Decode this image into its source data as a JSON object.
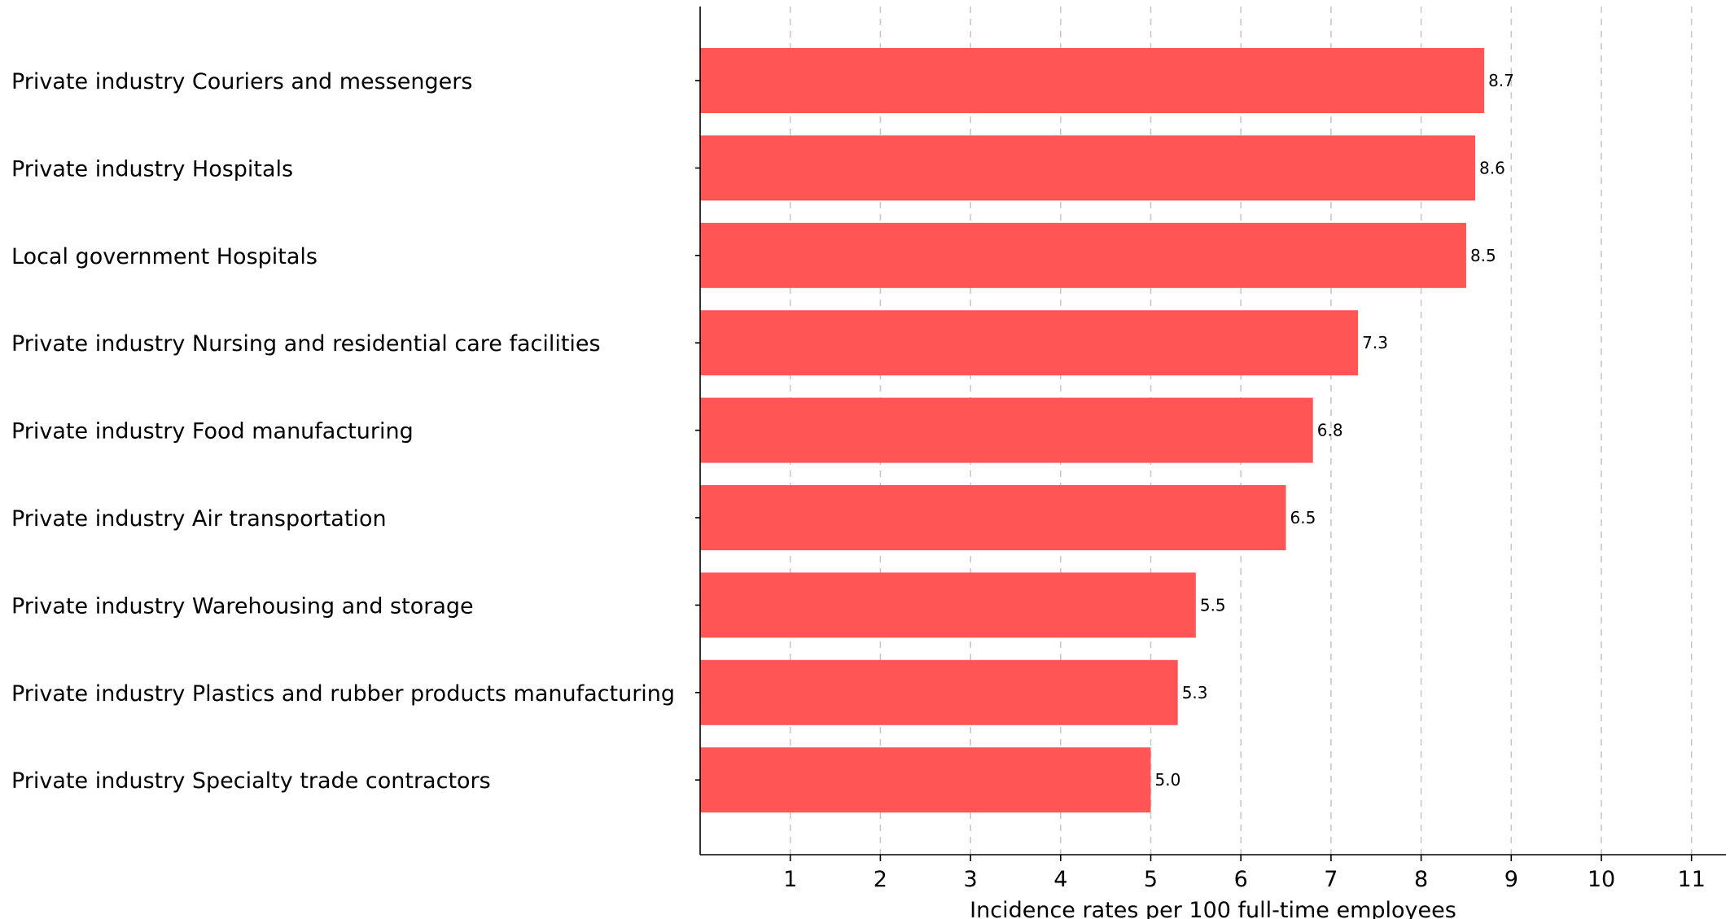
{
  "chart_data": {
    "type": "bar",
    "orientation": "horizontal",
    "categories": [
      "Private industry Couriers and messengers",
      "Private industry Hospitals",
      "Local government Hospitals",
      "Private industry Nursing and residential care facilities",
      "Private industry Food manufacturing",
      "Private industry Air transportation",
      "Private industry Warehousing and storage",
      "Private industry Plastics and rubber products manufacturing",
      "Private industry Specialty trade contractors"
    ],
    "values": [
      8.7,
      8.6,
      8.5,
      7.3,
      6.8,
      6.5,
      5.5,
      5.3,
      5.0
    ],
    "value_labels": [
      "8.7",
      "8.6",
      "8.5",
      "7.3",
      "6.8",
      "6.5",
      "5.5",
      "5.3",
      "5.0"
    ],
    "xlabel": "Incidence rates per 100 full-time employees",
    "ylabel": "",
    "xlim": [
      0,
      11.4
    ],
    "xticks": [
      1,
      2,
      3,
      4,
      5,
      6,
      7,
      8,
      9,
      10,
      11
    ],
    "grid": "vertical dashed",
    "bar_color": "#ff5555"
  }
}
